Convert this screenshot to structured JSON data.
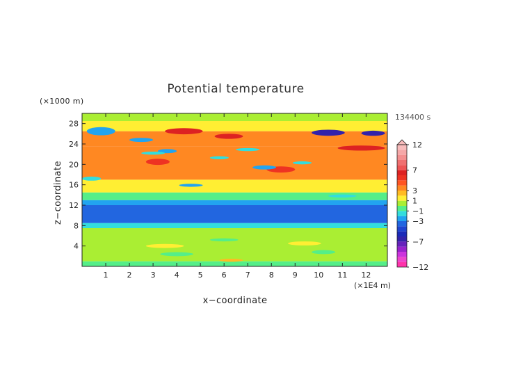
{
  "chart_data": {
    "type": "heatmap",
    "title": "Potential temperature",
    "xlabel": "x−coordinate",
    "ylabel": "z−coordinate",
    "x_unit": "(×1E4 m)",
    "y_unit": "(×1000 m)",
    "time_label": "134400 s",
    "xlim": [
      0,
      12.9
    ],
    "ylim": [
      0,
      30
    ],
    "x_ticks": [
      1,
      2,
      3,
      4,
      5,
      6,
      7,
      8,
      9,
      10,
      11,
      12
    ],
    "x_tick_labels": [
      "1",
      "2",
      "3",
      "4",
      "5",
      "6",
      "7",
      "8",
      "9",
      "10",
      "11",
      "12"
    ],
    "y_ticks": [
      4,
      8,
      12,
      16,
      20,
      24,
      28
    ],
    "y_tick_labels": [
      "4",
      "8",
      "12",
      "16",
      "20",
      "24",
      "28"
    ],
    "colorbar": {
      "tick_labels": [
        "12",
        "7",
        "3",
        "1",
        "−1",
        "−3",
        "−7",
        "−12"
      ],
      "tick_values": [
        12,
        7,
        3,
        1,
        -1,
        -3,
        -7,
        -12
      ],
      "levels": [
        {
          "low": -12,
          "high": -11,
          "color": "#ff33aa"
        },
        {
          "low": -11,
          "high": -10,
          "color": "#ee44cc"
        },
        {
          "low": -10,
          "high": -9,
          "color": "#cc33dd"
        },
        {
          "low": -9,
          "high": -8,
          "color": "#9922cc"
        },
        {
          "low": -8,
          "high": -7,
          "color": "#6622bb"
        },
        {
          "low": -7,
          "high": -6,
          "color": "#3322aa"
        },
        {
          "low": -6,
          "high": -5,
          "color": "#1a2ab8"
        },
        {
          "low": -5,
          "high": -4,
          "color": "#1f44d0"
        },
        {
          "low": -4,
          "high": -3,
          "color": "#2266e0"
        },
        {
          "low": -3,
          "high": -2,
          "color": "#22a4f0"
        },
        {
          "low": -2,
          "high": -1,
          "color": "#33dddd"
        },
        {
          "low": -1,
          "high": 0,
          "color": "#55ee88"
        },
        {
          "low": 0,
          "high": 1,
          "color": "#aaee33"
        },
        {
          "low": 1,
          "high": 2,
          "color": "#ffee33"
        },
        {
          "low": 2,
          "high": 3,
          "color": "#ffbb22"
        },
        {
          "low": 3,
          "high": 4,
          "color": "#ff8822"
        },
        {
          "low": 4,
          "high": 5,
          "color": "#ff5522"
        },
        {
          "low": 5,
          "high": 6,
          "color": "#ee3322"
        },
        {
          "low": 6,
          "high": 7,
          "color": "#dd2222"
        },
        {
          "low": 7,
          "high": 8,
          "color": "#ee5555"
        },
        {
          "low": 8,
          "high": 9,
          "color": "#f07070"
        },
        {
          "low": 9,
          "high": 10,
          "color": "#f39090"
        },
        {
          "low": 10,
          "high": 11,
          "color": "#f5a8a8"
        },
        {
          "low": 11,
          "high": 12,
          "color": "#f8bcbc"
        }
      ]
    },
    "bands": [
      {
        "z": [
          0,
          1
        ],
        "value": -0.8
      },
      {
        "z": [
          1,
          7.5
        ],
        "value": 0.5
      },
      {
        "z": [
          7.5,
          8.5
        ],
        "value": -1.5
      },
      {
        "z": [
          8.5,
          12
        ],
        "value": -3.6
      },
      {
        "z": [
          12,
          13
        ],
        "value": -2.5
      },
      {
        "z": [
          13,
          14.5
        ],
        "value": -0.5
      },
      {
        "z": [
          14.5,
          17
        ],
        "value": 1.5
      },
      {
        "z": [
          17,
          23.5
        ],
        "value": 3.5
      },
      {
        "z": [
          23.5,
          26.5
        ],
        "value": 3.0
      },
      {
        "z": [
          26.5,
          28.5
        ],
        "value": 1.2
      },
      {
        "z": [
          28.5,
          30
        ],
        "value": 0.3
      }
    ],
    "features": [
      {
        "x": 10.4,
        "z": 26.2,
        "rx": 0.7,
        "rz": 0.6,
        "value": -7
      },
      {
        "x": 12.3,
        "z": 26.1,
        "rx": 0.5,
        "rz": 0.5,
        "value": -7
      },
      {
        "x": 0.8,
        "z": 26.5,
        "rx": 0.6,
        "rz": 0.8,
        "value": -3
      },
      {
        "x": 2.5,
        "z": 24.8,
        "rx": 0.5,
        "rz": 0.4,
        "value": -3
      },
      {
        "x": 3.6,
        "z": 22.6,
        "rx": 0.4,
        "rz": 0.4,
        "value": -3
      },
      {
        "x": 4.3,
        "z": 26.5,
        "rx": 0.8,
        "rz": 0.6,
        "value": 6
      },
      {
        "x": 6.2,
        "z": 25.5,
        "rx": 0.6,
        "rz": 0.5,
        "value": 6
      },
      {
        "x": 11.8,
        "z": 23.2,
        "rx": 1.0,
        "rz": 0.5,
        "value": 6
      },
      {
        "x": 3.2,
        "z": 20.5,
        "rx": 0.5,
        "rz": 0.6,
        "value": 5
      },
      {
        "x": 8.4,
        "z": 19.0,
        "rx": 0.6,
        "rz": 0.6,
        "value": 5
      },
      {
        "x": 3.0,
        "z": 22.2,
        "rx": 0.5,
        "rz": 0.3,
        "value": -2
      },
      {
        "x": 5.8,
        "z": 21.3,
        "rx": 0.4,
        "rz": 0.3,
        "value": -2
      },
      {
        "x": 7.0,
        "z": 22.9,
        "rx": 0.5,
        "rz": 0.3,
        "value": -2
      },
      {
        "x": 9.3,
        "z": 20.3,
        "rx": 0.4,
        "rz": 0.3,
        "value": -2
      },
      {
        "x": 0.4,
        "z": 17.2,
        "rx": 0.4,
        "rz": 0.4,
        "value": -2
      },
      {
        "x": 7.7,
        "z": 19.4,
        "rx": 0.5,
        "rz": 0.4,
        "value": -3
      },
      {
        "x": 4.6,
        "z": 15.9,
        "rx": 0.5,
        "rz": 0.3,
        "value": -3
      },
      {
        "x": 11.0,
        "z": 13.8,
        "rx": 0.6,
        "rz": 0.3,
        "value": -2
      },
      {
        "x": 3.5,
        "z": 4.0,
        "rx": 0.8,
        "rz": 0.4,
        "value": 1.5
      },
      {
        "x": 9.4,
        "z": 4.5,
        "rx": 0.7,
        "rz": 0.4,
        "value": 1.5
      },
      {
        "x": 6.0,
        "z": 5.2,
        "rx": 0.6,
        "rz": 0.3,
        "value": -0.5
      },
      {
        "x": 4.0,
        "z": 2.4,
        "rx": 0.7,
        "rz": 0.4,
        "value": -0.5
      },
      {
        "x": 10.2,
        "z": 2.8,
        "rx": 0.5,
        "rz": 0.4,
        "value": -0.5
      },
      {
        "x": 6.3,
        "z": 1.2,
        "rx": 0.5,
        "rz": 0.3,
        "value": 2.5
      }
    ]
  }
}
